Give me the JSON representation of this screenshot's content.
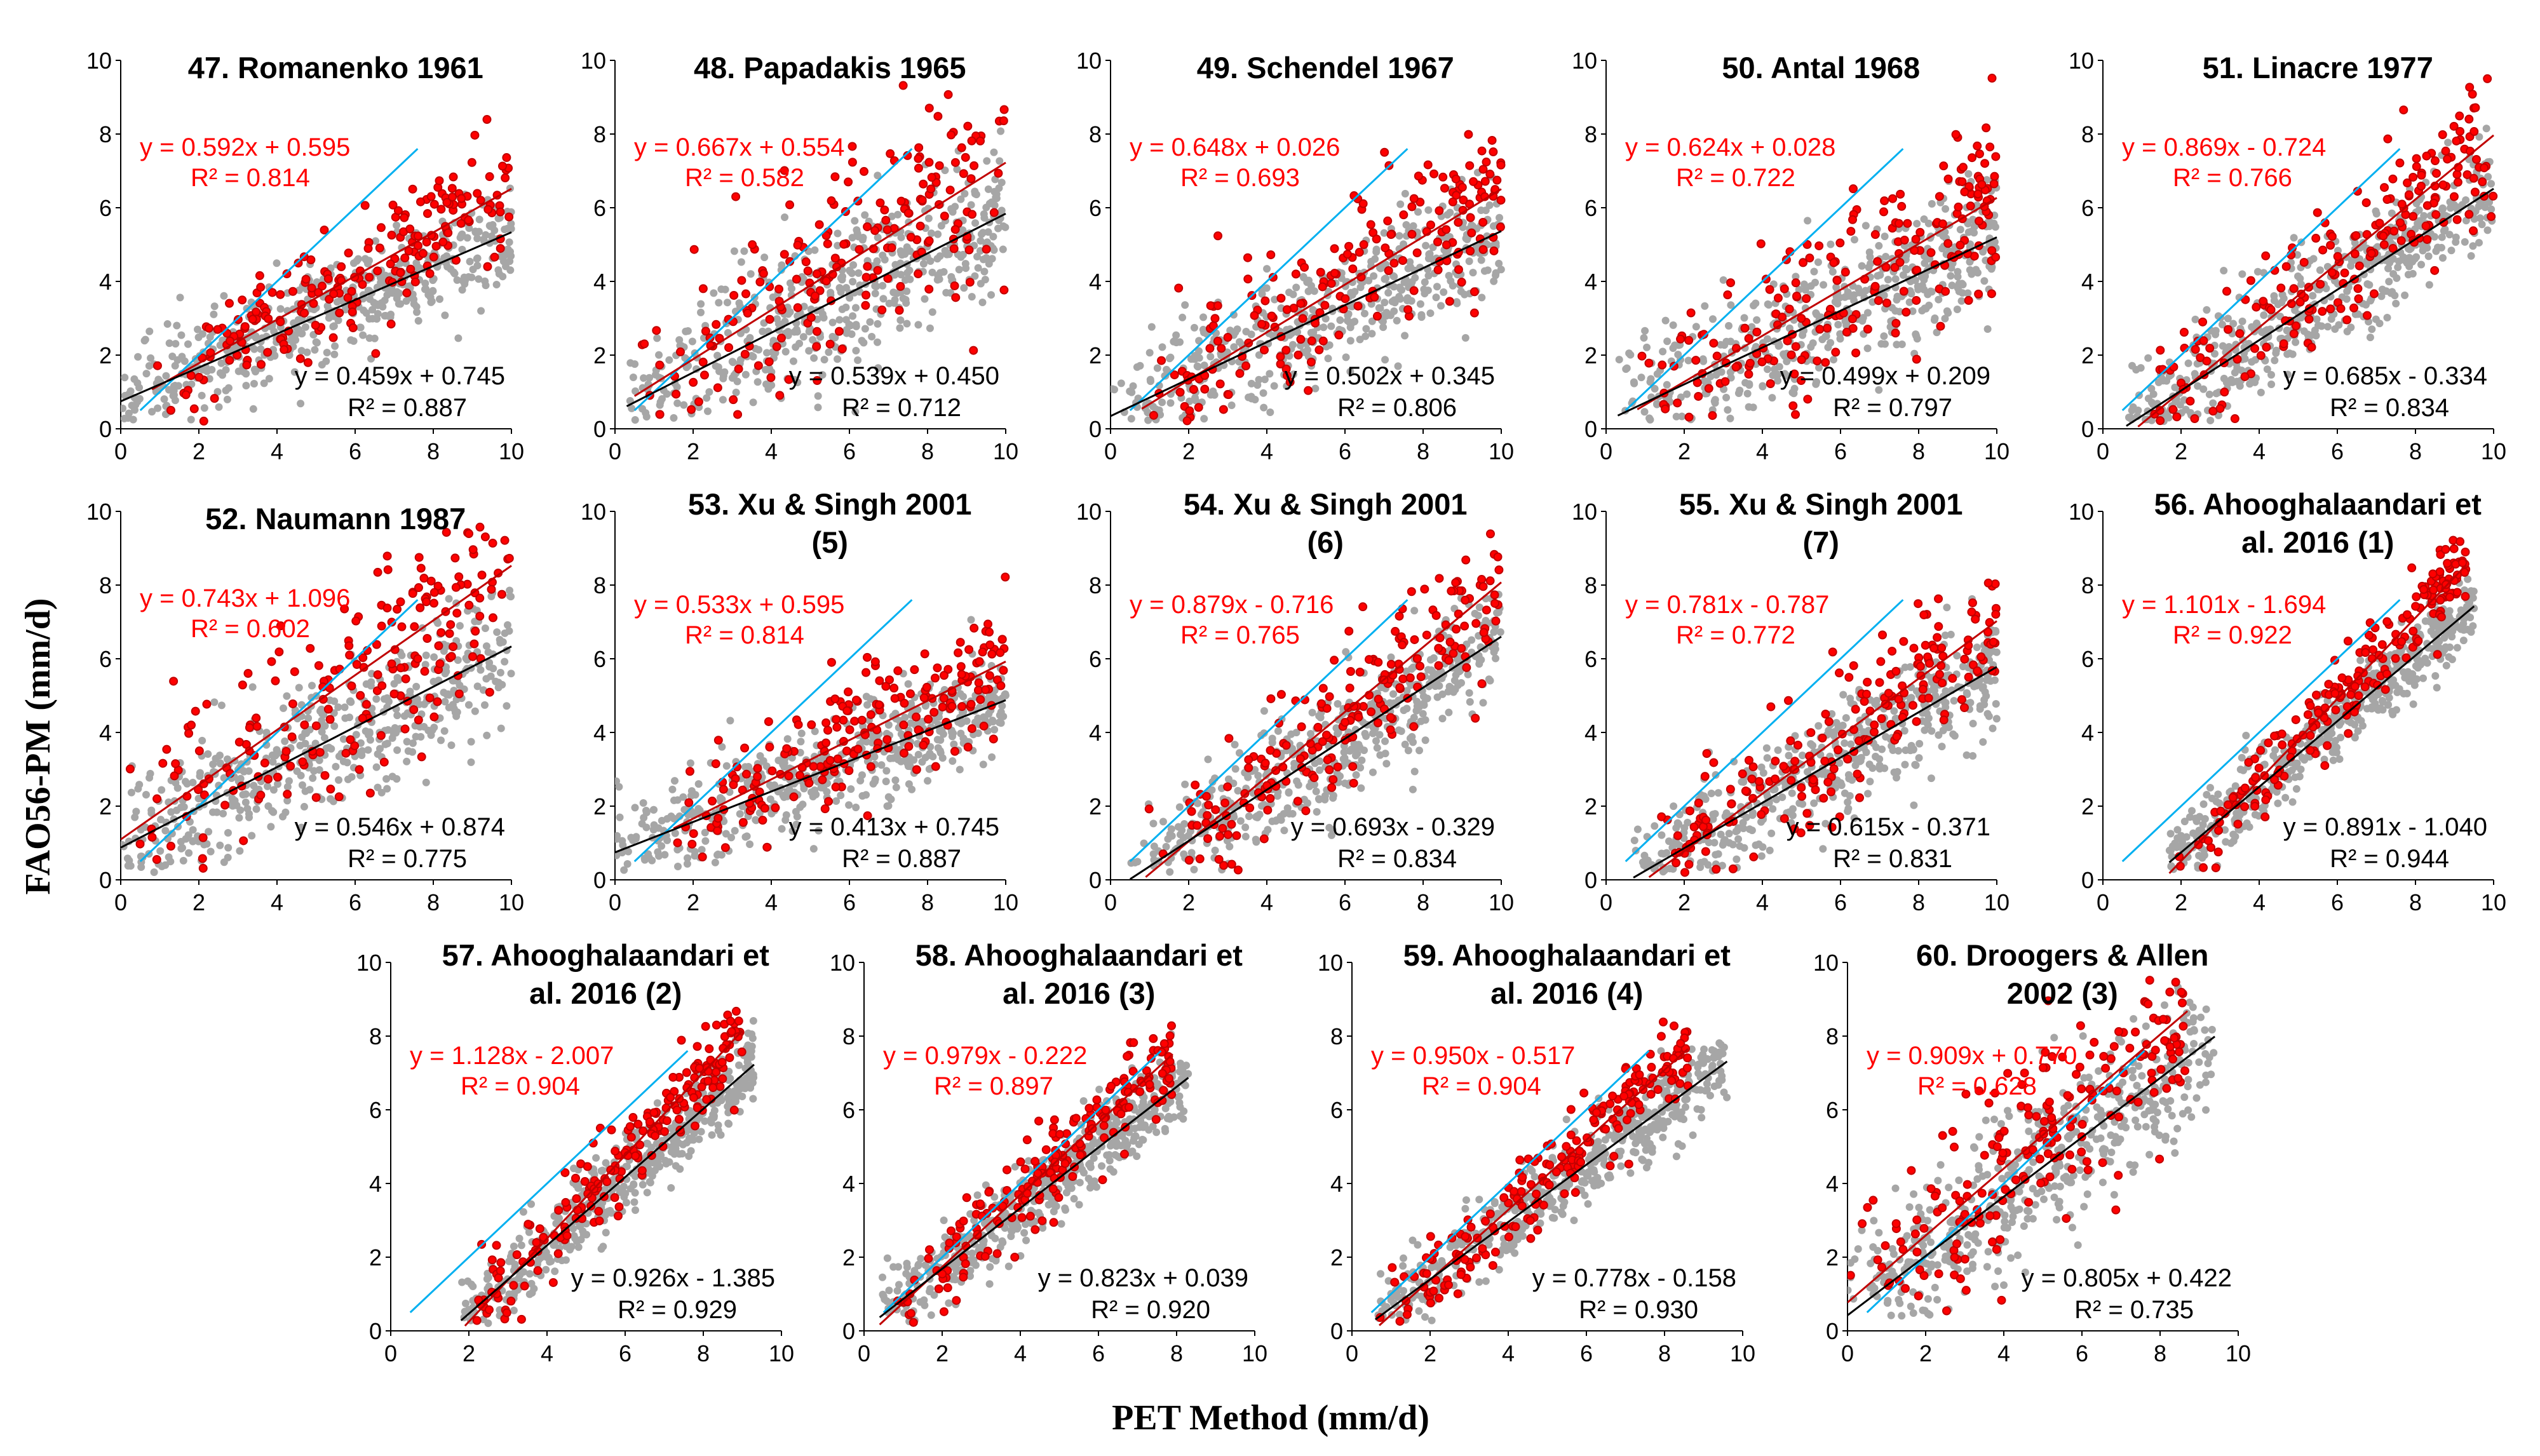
{
  "figure": {
    "ylabel": "FAO56-PM (mm/d)",
    "xlabel": "PET Method (mm/d)"
  },
  "colors": {
    "red_points": "#ff0000",
    "red_edge": "#c00000",
    "gray_points": "#a6a6a6",
    "red_line": "#c00000",
    "black_line": "#000000",
    "blue_line": "#00b0f0"
  },
  "chart_data": [
    {
      "type": "scatter",
      "title_lines": [
        "47. Romanenko 1961"
      ],
      "xlim": [
        0,
        10
      ],
      "ylim": [
        0,
        10
      ],
      "xticks": [
        "0",
        "2",
        "4",
        "6",
        "8",
        "10"
      ],
      "yticks": [
        "0",
        "2",
        "4",
        "6",
        "8",
        "10"
      ],
      "red_fit": {
        "slope": 0.592,
        "intercept": 0.595,
        "equation": "y = 0.592x + 0.595",
        "r2": "R² = 0.814"
      },
      "black_fit": {
        "slope": 0.459,
        "intercept": 0.745,
        "equation": "y = 0.459x + 0.745",
        "r2": "R² = 0.887"
      },
      "blue_line": {
        "x": [
          0.5,
          7.6
        ],
        "y": [
          0.5,
          7.6
        ]
      },
      "red_x_range": [
        0.8,
        10
      ],
      "black_x_range": [
        0,
        10
      ]
    },
    {
      "type": "scatter",
      "title_lines": [
        "48. Papadakis 1965"
      ],
      "xlim": [
        0,
        10
      ],
      "ylim": [
        0,
        10
      ],
      "xticks": [
        "0",
        "2",
        "4",
        "6",
        "8",
        "10"
      ],
      "yticks": [
        "0",
        "2",
        "4",
        "6",
        "8",
        "10"
      ],
      "red_fit": {
        "slope": 0.667,
        "intercept": 0.554,
        "equation": "y = 0.667x + 0.554",
        "r2": "R² = 0.582"
      },
      "black_fit": {
        "slope": 0.539,
        "intercept": 0.45,
        "equation": "y = 0.539x + 0.450",
        "r2": "R² = 0.712"
      },
      "blue_line": {
        "x": [
          0.5,
          7.6
        ],
        "y": [
          0.5,
          7.6
        ]
      },
      "red_x_range": [
        0.5,
        10
      ],
      "black_x_range": [
        0.3,
        10
      ]
    },
    {
      "type": "scatter",
      "title_lines": [
        "49. Schendel 1967"
      ],
      "xlim": [
        0,
        10
      ],
      "ylim": [
        0,
        10
      ],
      "xticks": [
        "0",
        "2",
        "4",
        "6",
        "8",
        "10"
      ],
      "yticks": [
        "0",
        "2",
        "4",
        "6",
        "8",
        "10"
      ],
      "red_fit": {
        "slope": 0.648,
        "intercept": 0.026,
        "equation": "y = 0.648x + 0.026",
        "r2": "R² = 0.693"
      },
      "black_fit": {
        "slope": 0.502,
        "intercept": 0.345,
        "equation": "y = 0.502x + 0.345",
        "r2": "R² = 0.806"
      },
      "blue_line": {
        "x": [
          0.5,
          7.6
        ],
        "y": [
          0.5,
          7.6
        ]
      },
      "red_x_range": [
        0.8,
        10
      ],
      "black_x_range": [
        0,
        10
      ]
    },
    {
      "type": "scatter",
      "title_lines": [
        "50. Antal 1968"
      ],
      "xlim": [
        0,
        10
      ],
      "ylim": [
        0,
        10
      ],
      "xticks": [
        "0",
        "2",
        "4",
        "6",
        "8",
        "10"
      ],
      "yticks": [
        "0",
        "2",
        "4",
        "6",
        "8",
        "10"
      ],
      "red_fit": {
        "slope": 0.624,
        "intercept": 0.028,
        "equation": "y = 0.624x + 0.028",
        "r2": "R² = 0.722"
      },
      "black_fit": {
        "slope": 0.499,
        "intercept": 0.209,
        "equation": "y = 0.499x + 0.209",
        "r2": "R² = 0.797"
      },
      "blue_line": {
        "x": [
          0.5,
          7.6
        ],
        "y": [
          0.5,
          7.6
        ]
      },
      "red_x_range": [
        0.8,
        10
      ],
      "black_x_range": [
        0.3,
        10
      ]
    },
    {
      "type": "scatter",
      "title_lines": [
        "51. Linacre 1977"
      ],
      "xlim": [
        0,
        10
      ],
      "ylim": [
        0,
        10
      ],
      "xticks": [
        "0",
        "2",
        "4",
        "6",
        "8",
        "10"
      ],
      "yticks": [
        "0",
        "2",
        "4",
        "6",
        "8",
        "10"
      ],
      "red_fit": {
        "slope": 0.869,
        "intercept": -0.724,
        "equation": "y = 0.869x - 0.724",
        "r2": "R² = 0.766"
      },
      "black_fit": {
        "slope": 0.685,
        "intercept": -0.334,
        "equation": "y = 0.685x - 0.334",
        "r2": "R² = 0.834"
      },
      "blue_line": {
        "x": [
          0.5,
          7.6
        ],
        "y": [
          0.5,
          7.6
        ]
      },
      "red_x_range": [
        0.9,
        10
      ],
      "black_x_range": [
        0.6,
        10
      ]
    },
    {
      "type": "scatter",
      "title_lines": [
        "52. Naumann 1987"
      ],
      "xlim": [
        0,
        10
      ],
      "ylim": [
        0,
        10
      ],
      "xticks": [
        "0",
        "2",
        "4",
        "6",
        "8",
        "10"
      ],
      "yticks": [
        "0",
        "2",
        "4",
        "6",
        "8",
        "10"
      ],
      "red_fit": {
        "slope": 0.743,
        "intercept": 1.096,
        "equation": "y = 0.743x + 1.096",
        "r2": "R² = 0.602"
      },
      "black_fit": {
        "slope": 0.546,
        "intercept": 0.874,
        "equation": "y = 0.546x + 0.874",
        "r2": "R² = 0.775"
      },
      "blue_line": {
        "x": [
          0.5,
          7.6
        ],
        "y": [
          0.5,
          7.6
        ]
      },
      "red_x_range": [
        0,
        10
      ],
      "black_x_range": [
        0,
        10
      ]
    },
    {
      "type": "scatter",
      "title_lines": [
        "53. Xu & Singh 2001",
        "(5)"
      ],
      "xlim": [
        0,
        10
      ],
      "ylim": [
        0,
        10
      ],
      "xticks": [
        "0",
        "2",
        "4",
        "6",
        "8",
        "10"
      ],
      "yticks": [
        "0",
        "2",
        "4",
        "6",
        "8",
        "10"
      ],
      "red_fit": {
        "slope": 0.533,
        "intercept": 0.595,
        "equation": "y = 0.533x + 0.595",
        "r2": "R² = 0.814"
      },
      "black_fit": {
        "slope": 0.413,
        "intercept": 0.745,
        "equation": "y = 0.413x + 0.745",
        "r2": "R² = 0.887"
      },
      "blue_line": {
        "x": [
          0.5,
          7.6
        ],
        "y": [
          0.5,
          7.6
        ]
      },
      "red_x_range": [
        1.5,
        10
      ],
      "black_x_range": [
        0,
        10
      ]
    },
    {
      "type": "scatter",
      "title_lines": [
        "54. Xu & Singh 2001",
        "(6)"
      ],
      "xlim": [
        0,
        10
      ],
      "ylim": [
        0,
        10
      ],
      "xticks": [
        "0",
        "2",
        "4",
        "6",
        "8",
        "10"
      ],
      "yticks": [
        "0",
        "2",
        "4",
        "6",
        "8",
        "10"
      ],
      "red_fit": {
        "slope": 0.879,
        "intercept": -0.716,
        "equation": "y = 0.879x - 0.716",
        "r2": "R² = 0.765"
      },
      "black_fit": {
        "slope": 0.693,
        "intercept": -0.329,
        "equation": "y = 0.693x - 0.329",
        "r2": "R² = 0.834"
      },
      "blue_line": {
        "x": [
          0.5,
          7.6
        ],
        "y": [
          0.5,
          7.6
        ]
      },
      "red_x_range": [
        0.9,
        10
      ],
      "black_x_range": [
        0.5,
        10
      ]
    },
    {
      "type": "scatter",
      "title_lines": [
        "55. Xu & Singh 2001",
        "(7)"
      ],
      "xlim": [
        0,
        10
      ],
      "ylim": [
        0,
        10
      ],
      "xticks": [
        "0",
        "2",
        "4",
        "6",
        "8",
        "10"
      ],
      "yticks": [
        "0",
        "2",
        "4",
        "6",
        "8",
        "10"
      ],
      "red_fit": {
        "slope": 0.781,
        "intercept": -0.787,
        "equation": "y = 0.781x - 0.787",
        "r2": "R² = 0.772"
      },
      "black_fit": {
        "slope": 0.615,
        "intercept": -0.371,
        "equation": "y = 0.615x - 0.371",
        "r2": "R² = 0.831"
      },
      "blue_line": {
        "x": [
          0.5,
          7.6
        ],
        "y": [
          0.5,
          7.6
        ]
      },
      "red_x_range": [
        1.1,
        10
      ],
      "black_x_range": [
        0.7,
        10
      ]
    },
    {
      "type": "scatter",
      "title_lines": [
        "56. Ahooghalaandari et",
        "al. 2016 (1)"
      ],
      "xlim": [
        0,
        10
      ],
      "ylim": [
        0,
        10
      ],
      "xticks": [
        "0",
        "2",
        "4",
        "6",
        "8",
        "10"
      ],
      "yticks": [
        "0",
        "2",
        "4",
        "6",
        "8",
        "10"
      ],
      "red_fit": {
        "slope": 1.101,
        "intercept": -1.694,
        "equation": "y = 1.101x - 1.694",
        "r2": "R² = 0.922"
      },
      "black_fit": {
        "slope": 0.891,
        "intercept": -1.04,
        "equation": "y = 0.891x - 1.040",
        "r2": "R² = 0.944"
      },
      "blue_line": {
        "x": [
          0.5,
          7.6
        ],
        "y": [
          0.5,
          7.6
        ]
      },
      "red_x_range": [
        1.7,
        9.3
      ],
      "black_x_range": [
        1.7,
        9.5
      ]
    },
    {
      "type": "scatter",
      "title_lines": [
        "57. Ahooghalaandari et",
        "al. 2016 (2)"
      ],
      "xlim": [
        0,
        10
      ],
      "ylim": [
        0,
        10
      ],
      "xticks": [
        "0",
        "2",
        "4",
        "6",
        "8",
        "10"
      ],
      "yticks": [
        "0",
        "2",
        "4",
        "6",
        "8",
        "10"
      ],
      "red_fit": {
        "slope": 1.128,
        "intercept": -2.007,
        "equation": "y = 1.128x - 2.007",
        "r2": "R² = 0.904"
      },
      "black_fit": {
        "slope": 0.926,
        "intercept": -1.385,
        "equation": "y = 0.926x - 1.385",
        "r2": "R² = 0.929"
      },
      "blue_line": {
        "x": [
          0.5,
          7.6
        ],
        "y": [
          0.5,
          7.6
        ]
      },
      "red_x_range": [
        1.9,
        9.0
      ],
      "black_x_range": [
        1.8,
        9.3
      ]
    },
    {
      "type": "scatter",
      "title_lines": [
        "58. Ahooghalaandari et",
        "al. 2016 (3)"
      ],
      "xlim": [
        0,
        10
      ],
      "ylim": [
        0,
        10
      ],
      "xticks": [
        "0",
        "2",
        "4",
        "6",
        "8",
        "10"
      ],
      "yticks": [
        "0",
        "2",
        "4",
        "6",
        "8",
        "10"
      ],
      "red_fit": {
        "slope": 0.979,
        "intercept": -0.222,
        "equation": "y = 0.979x - 0.222",
        "r2": "R² = 0.897"
      },
      "black_fit": {
        "slope": 0.823,
        "intercept": 0.039,
        "equation": "y = 0.823x + 0.039",
        "r2": "R² = 0.920"
      },
      "blue_line": {
        "x": [
          0.5,
          7.6
        ],
        "y": [
          0.5,
          7.6
        ]
      },
      "red_x_range": [
        0.4,
        7.9
      ],
      "black_x_range": [
        0.4,
        8.3
      ]
    },
    {
      "type": "scatter",
      "title_lines": [
        "59. Ahooghalaandari et",
        "al. 2016 (4)"
      ],
      "xlim": [
        0,
        10
      ],
      "ylim": [
        0,
        10
      ],
      "xticks": [
        "0",
        "2",
        "4",
        "6",
        "8",
        "10"
      ],
      "yticks": [
        "0",
        "2",
        "4",
        "6",
        "8",
        "10"
      ],
      "red_fit": {
        "slope": 0.95,
        "intercept": -0.517,
        "equation": "y = 0.950x - 0.517",
        "r2": "R² = 0.904"
      },
      "black_fit": {
        "slope": 0.778,
        "intercept": -0.158,
        "equation": "y = 0.778x - 0.158",
        "r2": "R² = 0.930"
      },
      "blue_line": {
        "x": [
          0.5,
          7.6
        ],
        "y": [
          0.5,
          7.6
        ]
      },
      "red_x_range": [
        0.7,
        8.6
      ],
      "black_x_range": [
        0.6,
        9.6
      ]
    },
    {
      "type": "scatter",
      "title_lines": [
        "60. Droogers & Allen",
        "2002 (3)"
      ],
      "xlim": [
        0,
        10
      ],
      "ylim": [
        0,
        10
      ],
      "xticks": [
        "0",
        "2",
        "4",
        "6",
        "8",
        "10"
      ],
      "yticks": [
        "0",
        "2",
        "4",
        "6",
        "8",
        "10"
      ],
      "red_fit": {
        "slope": 0.909,
        "intercept": 0.77,
        "equation": "y = 0.909x + 0.770",
        "r2": "R² = 0.628"
      },
      "black_fit": {
        "slope": 0.805,
        "intercept": 0.422,
        "equation": "y = 0.805x + 0.422",
        "r2": "R² = 0.735"
      },
      "blue_line": {
        "x": [
          0.5,
          7.6
        ],
        "y": [
          0.5,
          7.6
        ]
      },
      "red_x_range": [
        0,
        8.7
      ],
      "black_x_range": [
        0,
        9.4
      ]
    }
  ]
}
